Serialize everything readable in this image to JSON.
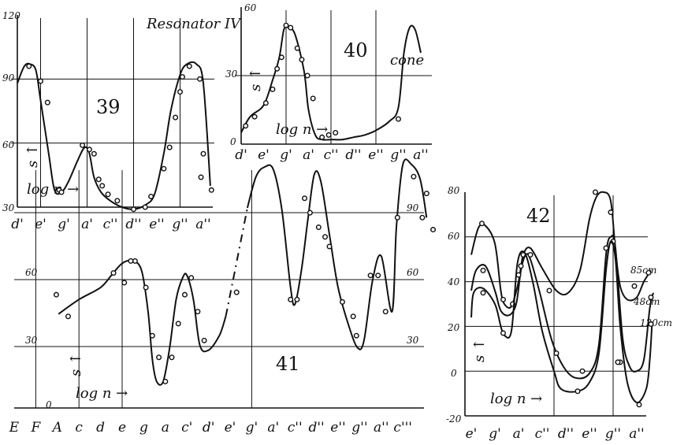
{
  "chart_data": [
    {
      "id": "fig39",
      "type": "line",
      "title": "39",
      "header": "Resonator IV",
      "xlabel": "log n →",
      "ylabel": "s ↑",
      "categories": [
        "d'",
        "e'",
        "g'",
        "a'",
        "c''",
        "d''",
        "e''",
        "g''",
        "a''"
      ],
      "y_ticks": [
        "120",
        "90",
        "60",
        "30"
      ],
      "ylim": [
        30,
        120
      ],
      "curve": [
        [
          0,
          88
        ],
        [
          0.3,
          96
        ],
        [
          0.55,
          97
        ],
        [
          0.8,
          94
        ],
        [
          1.0,
          80
        ],
        [
          1.35,
          55
        ],
        [
          1.6,
          38
        ],
        [
          1.9,
          37
        ],
        [
          2.2,
          42
        ],
        [
          2.6,
          52
        ],
        [
          2.9,
          58
        ],
        [
          3.1,
          55
        ],
        [
          3.3,
          44
        ],
        [
          3.6,
          37
        ],
        [
          4.0,
          33
        ],
        [
          4.5,
          30
        ],
        [
          5.0,
          29
        ],
        [
          5.5,
          31
        ],
        [
          5.9,
          36
        ],
        [
          6.3,
          55
        ],
        [
          6.6,
          75
        ],
        [
          7.0,
          92
        ],
        [
          7.3,
          97
        ],
        [
          7.7,
          97
        ],
        [
          8.0,
          88
        ],
        [
          8.3,
          40
        ]
      ],
      "points": [
        [
          0.5,
          96
        ],
        [
          1.0,
          89
        ],
        [
          1.3,
          79
        ],
        [
          1.8,
          38
        ],
        [
          1.9,
          37
        ],
        [
          2.8,
          59
        ],
        [
          3.1,
          57
        ],
        [
          3.3,
          55
        ],
        [
          3.5,
          43
        ],
        [
          3.65,
          40
        ],
        [
          3.9,
          36
        ],
        [
          4.3,
          33
        ],
        [
          5.0,
          29
        ],
        [
          5.5,
          30
        ],
        [
          5.75,
          35
        ],
        [
          6.3,
          48
        ],
        [
          6.55,
          58
        ],
        [
          6.8,
          72
        ],
        [
          7.0,
          84
        ],
        [
          7.1,
          91
        ],
        [
          7.4,
          96
        ],
        [
          7.85,
          90
        ],
        [
          7.9,
          44
        ],
        [
          8.0,
          55
        ],
        [
          8.35,
          38
        ]
      ]
    },
    {
      "id": "fig40",
      "type": "line",
      "title": "40",
      "annotation": "cone",
      "xlabel": "log n →",
      "ylabel": "s ↑",
      "categories": [
        "d'",
        "e'",
        "g'",
        "a'",
        "c''",
        "d''",
        "e''",
        "g''",
        "a''"
      ],
      "y_ticks": [
        "60",
        "30",
        "0"
      ],
      "ylim": [
        0,
        60
      ],
      "curve": [
        [
          0,
          5
        ],
        [
          0.4,
          12
        ],
        [
          1.0,
          17
        ],
        [
          1.4,
          28
        ],
        [
          1.7,
          38
        ],
        [
          1.9,
          50
        ],
        [
          2.1,
          51
        ],
        [
          2.4,
          48
        ],
        [
          2.8,
          32
        ],
        [
          3.0,
          15
        ],
        [
          3.3,
          4
        ],
        [
          3.6,
          2
        ],
        [
          4.0,
          2
        ],
        [
          4.5,
          2
        ],
        [
          5.0,
          3
        ],
        [
          5.5,
          4
        ],
        [
          6.0,
          6
        ],
        [
          6.6,
          10
        ],
        [
          7.0,
          16
        ],
        [
          7.25,
          40
        ],
        [
          7.5,
          51
        ],
        [
          7.75,
          50
        ],
        [
          8.0,
          40
        ]
      ],
      "points": [
        [
          0.2,
          8
        ],
        [
          0.6,
          12
        ],
        [
          1.1,
          18
        ],
        [
          1.4,
          24
        ],
        [
          1.6,
          33
        ],
        [
          1.8,
          38
        ],
        [
          2.0,
          52
        ],
        [
          2.2,
          51
        ],
        [
          2.5,
          42
        ],
        [
          2.7,
          37
        ],
        [
          2.95,
          30
        ],
        [
          3.2,
          20
        ],
        [
          3.6,
          3
        ],
        [
          3.9,
          4
        ],
        [
          4.2,
          5
        ],
        [
          7.0,
          11
        ]
      ]
    },
    {
      "id": "fig41",
      "type": "line",
      "title": "41",
      "xlabel": "log n →",
      "ylabel": "s ↑",
      "categories": [
        "E",
        "F",
        "A",
        "c",
        "d",
        "e",
        "g",
        "a",
        "c'",
        "d'",
        "e'",
        "g'",
        "a'",
        "c''",
        "d''",
        "e''",
        "g''",
        "a''",
        "c'''"
      ],
      "y_ticks_left": [
        "60",
        "30",
        "0"
      ],
      "y_ticks_right": [
        "90",
        "60",
        "30"
      ],
      "ylim": [
        0,
        100
      ],
      "curve_solid_1": [
        [
          2.05,
          39
        ],
        [
          3,
          45
        ],
        [
          4,
          50
        ],
        [
          4.5,
          55
        ],
        [
          5,
          60
        ],
        [
          5.5,
          61
        ],
        [
          5.9,
          57
        ],
        [
          6.2,
          40
        ],
        [
          6.4,
          20
        ],
        [
          6.6,
          11
        ],
        [
          6.9,
          11
        ],
        [
          7.2,
          25
        ],
        [
          7.5,
          45
        ],
        [
          7.8,
          54
        ],
        [
          8.0,
          55
        ],
        [
          8.3,
          45
        ],
        [
          8.6,
          26
        ],
        [
          9.0,
          24
        ],
        [
          9.5,
          30
        ],
        [
          9.8,
          38
        ]
      ],
      "curve_dash": [
        [
          9.8,
          38
        ],
        [
          10.4,
          65
        ],
        [
          10.8,
          83
        ]
      ],
      "curve_solid_2": [
        [
          10.8,
          83
        ],
        [
          11.2,
          96
        ],
        [
          11.6,
          100
        ],
        [
          12.0,
          99
        ],
        [
          12.4,
          82
        ],
        [
          12.8,
          50
        ],
        [
          13.0,
          43
        ],
        [
          13.3,
          57
        ],
        [
          13.6,
          78
        ],
        [
          13.9,
          97
        ],
        [
          14.2,
          94
        ],
        [
          14.6,
          72
        ],
        [
          15.0,
          50
        ],
        [
          15.5,
          34
        ],
        [
          15.9,
          25
        ],
        [
          16.2,
          28
        ],
        [
          16.6,
          53
        ],
        [
          17.0,
          63
        ],
        [
          17.5,
          40
        ],
        [
          17.7,
          75
        ],
        [
          18.0,
          101
        ],
        [
          18.4,
          101
        ],
        [
          18.8,
          95
        ],
        [
          19.1,
          79
        ]
      ],
      "points": [
        [
          1.95,
          47
        ],
        [
          2.5,
          38
        ],
        [
          4.6,
          56
        ],
        [
          5.1,
          52
        ],
        [
          5.4,
          61
        ],
        [
          5.6,
          61
        ],
        [
          6.1,
          50
        ],
        [
          6.4,
          30
        ],
        [
          6.7,
          21
        ],
        [
          7.0,
          11
        ],
        [
          7.3,
          21
        ],
        [
          7.6,
          35
        ],
        [
          7.9,
          47
        ],
        [
          8.2,
          54
        ],
        [
          8.5,
          40
        ],
        [
          8.8,
          28
        ],
        [
          10.3,
          48
        ],
        [
          12.8,
          45
        ],
        [
          13.1,
          45
        ],
        [
          13.45,
          87
        ],
        [
          13.7,
          81
        ],
        [
          14.1,
          75
        ],
        [
          14.4,
          71
        ],
        [
          14.6,
          67
        ],
        [
          15.2,
          44
        ],
        [
          15.7,
          38
        ],
        [
          15.85,
          30
        ],
        [
          16.5,
          55
        ],
        [
          16.85,
          55
        ],
        [
          17.2,
          40
        ],
        [
          17.75,
          79
        ],
        [
          18.5,
          96
        ],
        [
          18.9,
          79
        ],
        [
          19.1,
          89
        ],
        [
          19.4,
          74
        ]
      ]
    },
    {
      "id": "fig42",
      "type": "line",
      "title": "42",
      "xlabel": "log n →",
      "ylabel": "s ↑",
      "categories": [
        "e'",
        "g'",
        "a'",
        "c''",
        "d''",
        "e''",
        "g''",
        "a''"
      ],
      "y_ticks": [
        "80",
        "60",
        "40",
        "20",
        "0",
        "-20"
      ],
      "ylim": [
        -20,
        80
      ],
      "series": [
        {
          "name": "85cm",
          "curve": [
            [
              0,
              52
            ],
            [
              0.3,
              64
            ],
            [
              0.6,
              65
            ],
            [
              1.0,
              57
            ],
            [
              1.25,
              36
            ],
            [
              1.4,
              30
            ],
            [
              1.7,
              29
            ],
            [
              2.0,
              40
            ],
            [
              2.2,
              52
            ],
            [
              2.5,
              55
            ],
            [
              3.0,
              46
            ],
            [
              3.6,
              36
            ],
            [
              4.1,
              35
            ],
            [
              4.6,
              45
            ],
            [
              5.0,
              68
            ],
            [
              5.3,
              78
            ],
            [
              5.6,
              80
            ],
            [
              5.9,
              76
            ],
            [
              6.1,
              54
            ],
            [
              6.3,
              38
            ],
            [
              6.6,
              32
            ],
            [
              7.0,
              33
            ],
            [
              7.3,
              40
            ],
            [
              7.6,
              45
            ]
          ],
          "points": [
            [
              0.45,
              66
            ],
            [
              1.35,
              32
            ],
            [
              1.75,
              30
            ],
            [
              2.2,
              52
            ],
            [
              3.3,
              36
            ],
            [
              5.25,
              80
            ],
            [
              5.9,
              71
            ],
            [
              6.9,
              38
            ],
            [
              7.5,
              44
            ]
          ]
        },
        {
          "name": "48cm",
          "curve": [
            [
              0,
              36
            ],
            [
              0.2,
              45
            ],
            [
              0.6,
              47
            ],
            [
              1.0,
              36
            ],
            [
              1.25,
              27
            ],
            [
              1.6,
              25
            ],
            [
              1.9,
              30
            ],
            [
              2.1,
              45
            ],
            [
              2.3,
              52
            ],
            [
              2.5,
              50
            ],
            [
              2.9,
              35
            ],
            [
              3.4,
              14
            ],
            [
              3.9,
              2
            ],
            [
              4.4,
              -3
            ],
            [
              5.0,
              -1
            ],
            [
              5.4,
              12
            ],
            [
              5.7,
              52
            ],
            [
              5.9,
              60
            ],
            [
              6.1,
              55
            ],
            [
              6.4,
              15
            ],
            [
              6.7,
              2
            ],
            [
              7.0,
              0
            ],
            [
              7.3,
              5
            ],
            [
              7.55,
              28
            ],
            [
              7.7,
              35
            ]
          ],
          "points": [
            [
              0.5,
              45
            ],
            [
              2.1,
              47
            ],
            [
              2.5,
              52
            ],
            [
              3.6,
              8
            ],
            [
              4.7,
              0
            ],
            [
              6.0,
              58
            ],
            [
              6.3,
              4
            ],
            [
              7.6,
              33
            ]
          ]
        },
        {
          "name": "120cm",
          "curve": [
            [
              0,
              24
            ],
            [
              0.1,
              35
            ],
            [
              0.5,
              37
            ],
            [
              1.0,
              30
            ],
            [
              1.25,
              20
            ],
            [
              1.4,
              16
            ],
            [
              1.7,
              18
            ],
            [
              1.95,
              48
            ],
            [
              2.25,
              53
            ],
            [
              2.6,
              40
            ],
            [
              3.0,
              18
            ],
            [
              3.5,
              0
            ],
            [
              3.8,
              -8
            ],
            [
              4.5,
              -9
            ],
            [
              5.0,
              -5
            ],
            [
              5.4,
              8
            ],
            [
              5.7,
              45
            ],
            [
              5.9,
              58
            ],
            [
              6.1,
              50
            ],
            [
              6.3,
              20
            ],
            [
              6.6,
              -5
            ],
            [
              7.0,
              -14
            ],
            [
              7.4,
              -8
            ],
            [
              7.55,
              5
            ],
            [
              7.65,
              22
            ]
          ],
          "points": [
            [
              0.5,
              35
            ],
            [
              1.35,
              17
            ],
            [
              2.0,
              43
            ],
            [
              4.5,
              -9
            ],
            [
              5.7,
              55
            ],
            [
              6.2,
              4
            ],
            [
              7.1,
              -15
            ],
            [
              7.6,
              21
            ]
          ]
        }
      ]
    }
  ]
}
